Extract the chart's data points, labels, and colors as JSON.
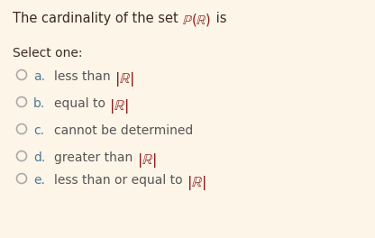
{
  "background_color": "#fdf5e8",
  "title_prefix": "The cardinality of the set ",
  "title_math": "$\\mathbb{P}(\\mathbb{R})$",
  "title_suffix": " is",
  "select_label": "Select one:",
  "options": [
    {
      "letter": "a.",
      "text": "less than ",
      "math": "$|\\mathbb{R}|$"
    },
    {
      "letter": "b.",
      "text": "equal to ",
      "math": "$|\\mathbb{R}|$"
    },
    {
      "letter": "c.",
      "text": "cannot be determined",
      "math": null
    },
    {
      "letter": "d.",
      "text": "greater than ",
      "math": "$|\\mathbb{R}|$"
    },
    {
      "letter": "e.",
      "text": "less than or equal to ",
      "math": "$|\\mathbb{R}|$"
    }
  ],
  "title_color": "#3d2b1f",
  "option_letter_color": "#4a7a9b",
  "option_text_color": "#555555",
  "math_color": "#8b1a1a",
  "select_color": "#3d2b1f",
  "circle_edge_color": "#aaaaaa",
  "title_fontsize": 10.5,
  "option_fontsize": 10.0,
  "select_fontsize": 10.0,
  "fig_width": 4.16,
  "fig_height": 2.64,
  "dpi": 100
}
